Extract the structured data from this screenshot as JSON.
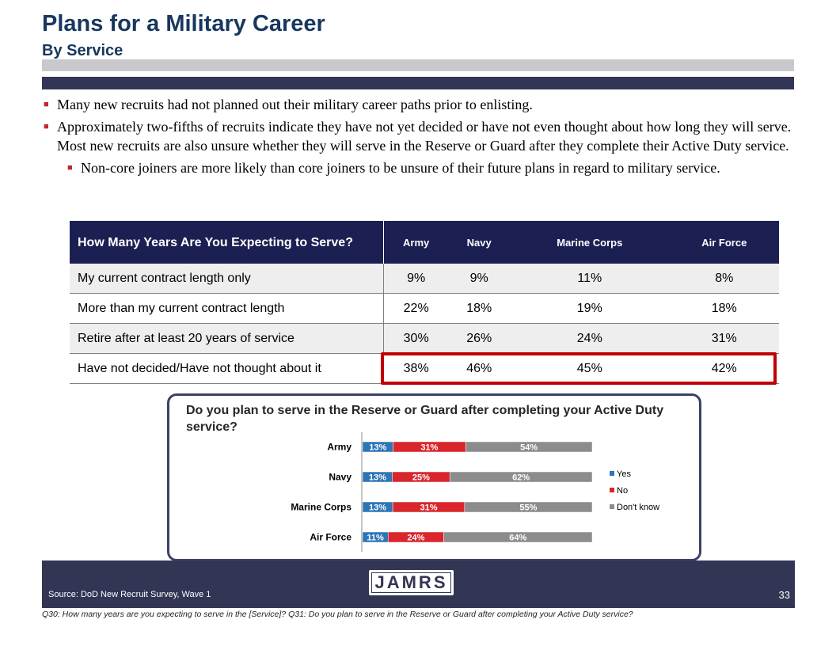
{
  "header": {
    "title": "Plans for a Military Career",
    "subtitle": "By Service"
  },
  "bullets": [
    {
      "text": "Many new recruits had not planned out their military career paths prior to enlisting.",
      "level": 1
    },
    {
      "text": "Approximately two-fifths of recruits indicate they have not yet decided or have not even thought about how long they will serve.  Most new recruits are also unsure whether they will serve in the Reserve or Guard after they complete their Active Duty service.",
      "level": 1
    },
    {
      "text": "Non-core joiners are more likely than core joiners to be unsure of their future plans in regard to military service.",
      "level": 2
    }
  ],
  "table": {
    "question": "How Many Years Are You Expecting to Serve?",
    "columns": [
      "Army",
      "Navy",
      "Marine Corps",
      "Air Force"
    ],
    "rows": [
      {
        "label": "My current contract length only",
        "values": [
          "9%",
          "9%",
          "11%",
          "8%"
        ]
      },
      {
        "label": "More than my current contract length",
        "values": [
          "22%",
          "18%",
          "19%",
          "18%"
        ]
      },
      {
        "label": "Retire after at least 20 years of service",
        "values": [
          "30%",
          "26%",
          "24%",
          "31%"
        ]
      },
      {
        "label": "Have not decided/Have not thought about it",
        "values": [
          "38%",
          "46%",
          "45%",
          "42%"
        ]
      }
    ]
  },
  "chart_data": {
    "type": "bar",
    "stacked": true,
    "orientation": "horizontal",
    "title": "Do you plan to serve in the Reserve or Guard after completing your Active Duty service?",
    "categories": [
      "Army",
      "Navy",
      "Marine Corps",
      "Air Force"
    ],
    "series": [
      {
        "name": "Yes",
        "values": [
          13,
          13,
          13,
          11
        ],
        "labels": [
          "13%",
          "13%",
          "13%",
          "11%"
        ],
        "color": "#2e75b6"
      },
      {
        "name": "No",
        "values": [
          31,
          25,
          31,
          24
        ],
        "labels": [
          "31%",
          "25%",
          "31%",
          "24%"
        ],
        "color": "#d9262c"
      },
      {
        "name": "Don't know",
        "values": [
          54,
          62,
          55,
          64
        ],
        "labels": [
          "54%",
          "62%",
          "55%",
          "64%"
        ],
        "color": "#8c8c8c"
      }
    ],
    "legend_position": "right"
  },
  "footer": {
    "source": "Source:  DoD New Recruit Survey, Wave 1",
    "logo": "JAMRS",
    "page_number": "33",
    "footnote": "Q30: How many years are you expecting to serve in the [Service]? Q31:  Do you plan to serve in the Reserve or Guard after completing your Active Duty service?"
  },
  "colors": {
    "title": "#17375e",
    "header_bar": "#323556",
    "table_header": "#1b1f52",
    "highlight": "#c00000"
  }
}
